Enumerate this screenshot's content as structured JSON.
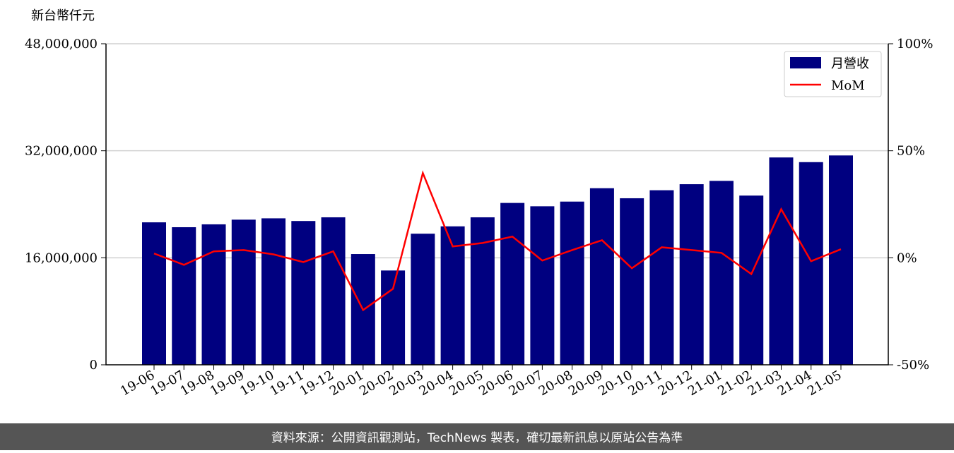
{
  "chart_data": {
    "type": "bar",
    "y_unit_label": "新台幣仟元",
    "categories": [
      "19-06",
      "19-07",
      "19-08",
      "19-09",
      "19-10",
      "19-11",
      "19-12",
      "20-01",
      "20-02",
      "20-03",
      "20-04",
      "20-05",
      "20-06",
      "20-07",
      "20-08",
      "20-09",
      "20-10",
      "20-11",
      "20-12",
      "21-01",
      "21-02",
      "21-03",
      "21-04",
      "21-05"
    ],
    "series": [
      {
        "name": "月營收",
        "type": "bar",
        "color": "#000080",
        "values": [
          21300000,
          20570000,
          21000000,
          21700000,
          21900000,
          21500000,
          22050000,
          16560000,
          14100000,
          19600000,
          20700000,
          22050000,
          24200000,
          23700000,
          24400000,
          26400000,
          24900000,
          26100000,
          27000000,
          27500000,
          25300000,
          31000000,
          30300000,
          31300000
        ]
      },
      {
        "name": "MoM",
        "type": "line",
        "color": "#ff0000",
        "axis": "y2",
        "values": [
          2.0,
          -3.3,
          3.0,
          3.6,
          1.6,
          -2.0,
          3.0,
          -24.4,
          -14.5,
          39.6,
          5.3,
          6.9,
          9.9,
          -1.3,
          3.6,
          8.2,
          -4.9,
          4.9,
          3.6,
          2.3,
          -7.6,
          22.7,
          -1.6,
          4.0
        ]
      }
    ],
    "ylim": [
      0,
      48000000
    ],
    "yticks": [
      0,
      {
        "value": 16000000,
        "label": "16,000,000"
      },
      {
        "value": 32000000,
        "label": "32,000,000"
      },
      {
        "value": 48000000,
        "label": "48,000,000"
      }
    ],
    "y2lim": [
      -50,
      100
    ],
    "y2ticks": [
      {
        "value": -50,
        "label": "-50%"
      },
      {
        "value": 0,
        "label": "0%"
      },
      {
        "value": 50,
        "label": "50%"
      },
      {
        "value": 100,
        "label": "100%"
      }
    ],
    "grid": true,
    "legend": "upper right",
    "source": "資料來源：公開資訊觀測站，TechNews 製表，確切最新訊息以原站公告為準"
  }
}
